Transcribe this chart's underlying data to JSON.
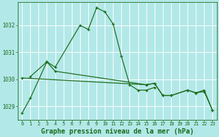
{
  "background_color": "#b3e8e8",
  "grid_color": "#ffffff",
  "line_color": "#1a6b1a",
  "xlabel": "Graphe pression niveau de la mer (hPa)",
  "xlabel_fontsize": 7,
  "xlim": [
    -0.5,
    23.5
  ],
  "ylim": [
    1028.5,
    1032.85
  ],
  "yticks": [
    1029,
    1030,
    1031,
    1032
  ],
  "xticks": [
    0,
    1,
    2,
    3,
    4,
    5,
    6,
    7,
    8,
    9,
    10,
    11,
    12,
    13,
    14,
    15,
    16,
    17,
    18,
    19,
    20,
    21,
    22,
    23
  ],
  "line1_x": [
    0,
    1,
    3,
    4,
    7,
    8,
    9,
    10,
    11,
    12,
    13,
    14,
    15,
    16
  ],
  "line1_y": [
    1028.75,
    1029.3,
    1030.65,
    1030.45,
    1032.0,
    1031.85,
    1032.65,
    1032.5,
    1032.05,
    1030.85,
    1029.8,
    1029.6,
    1029.6,
    1029.7
  ],
  "line2_x": [
    1,
    3,
    4,
    15,
    16,
    17,
    18,
    20,
    21,
    22,
    23
  ],
  "line2_y": [
    1030.1,
    1030.65,
    1030.3,
    1029.8,
    1029.85,
    1029.4,
    1029.4,
    1029.6,
    1029.5,
    1029.6,
    1028.85
  ],
  "line3_x": [
    0,
    15,
    16,
    17,
    18,
    20,
    21,
    22,
    23
  ],
  "line3_y": [
    1030.05,
    1029.8,
    1029.85,
    1029.4,
    1029.4,
    1029.6,
    1029.5,
    1029.55,
    1028.85
  ]
}
